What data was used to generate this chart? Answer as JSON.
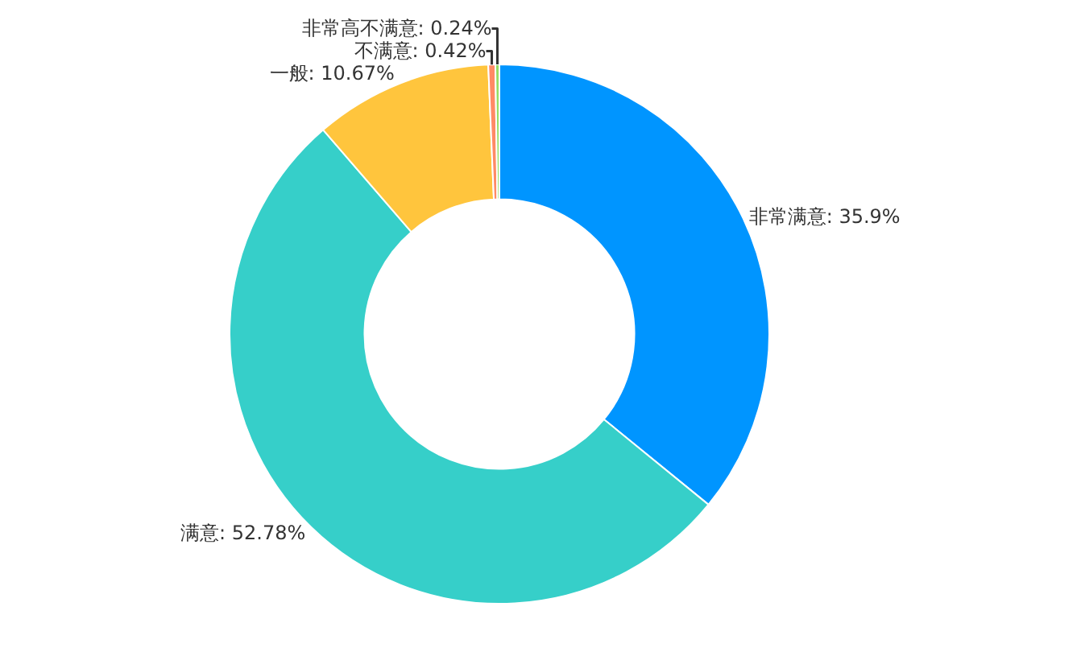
{
  "chart_data": {
    "type": "donut",
    "categories": [
      "非常满意",
      "满意",
      "一般",
      "不满意",
      "非常高不满意"
    ],
    "values": [
      35.9,
      52.78,
      10.67,
      0.42,
      0.24
    ],
    "value_labels": [
      "35.9%",
      "52.78%",
      "10.67%",
      "0.42%",
      "0.24%"
    ],
    "colors": [
      "#0095ff",
      "#36cfc9",
      "#ffc53d",
      "#ff8a65",
      "#95de64"
    ],
    "legend": false
  }
}
